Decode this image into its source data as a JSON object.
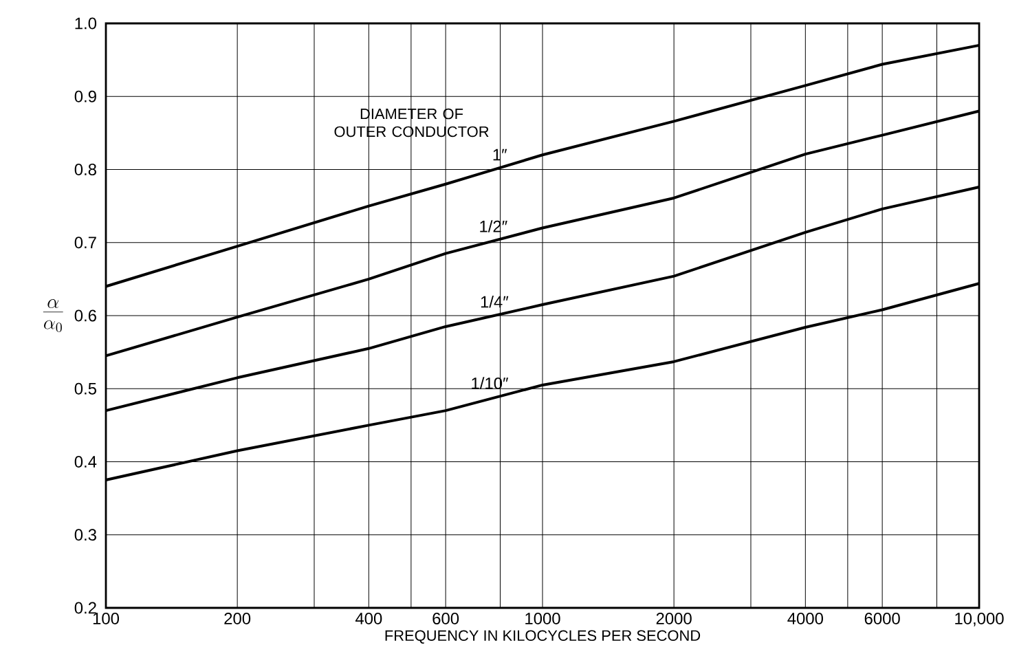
{
  "chart_data": {
    "type": "line",
    "xlabel": "FREQUENCY IN KILOCYCLES PER SECOND",
    "ylabel": "\\frac{\\alpha}{\\alpha_{0}}",
    "legend_title": "DIAMETER OF OUTER CONDUCTOR",
    "x": [
      100,
      200,
      400,
      600,
      1000,
      2000,
      4000,
      6000,
      10000
    ],
    "series": [
      {
        "name": "1″",
        "color": "#000000",
        "values": [
          0.64,
          0.695,
          0.75,
          0.78,
          0.82,
          0.866,
          0.915,
          0.944,
          0.97
        ]
      },
      {
        "name": "1/2″",
        "color": "#000000",
        "values": [
          0.545,
          0.598,
          0.65,
          0.685,
          0.72,
          0.761,
          0.821,
          0.847,
          0.88
        ]
      },
      {
        "name": "1/4″",
        "color": "#000000",
        "values": [
          0.47,
          0.515,
          0.555,
          0.585,
          0.615,
          0.654,
          0.714,
          0.746,
          0.776
        ]
      },
      {
        "name": "1/10″",
        "color": "#000000",
        "values": [
          0.375,
          0.415,
          0.45,
          0.47,
          0.505,
          0.537,
          0.584,
          0.608,
          0.644
        ]
      }
    ],
    "log": "x",
    "xlim": [
      100,
      10000
    ],
    "ylim": [
      0.2,
      1.0
    ],
    "xticks": [
      100,
      200,
      {
        "value": 300,
        "label": null
      },
      400,
      {
        "value": 500,
        "label": null
      },
      600,
      {
        "value": 800,
        "label": null
      },
      1000,
      2000,
      {
        "value": 3000,
        "label": null
      },
      4000,
      {
        "value": 5000,
        "label": null
      },
      6000,
      {
        "value": 8000,
        "label": null
      },
      {
        "value": 10000,
        "label": "10,000"
      }
    ],
    "yticks": [
      0.2,
      0.3,
      0.4,
      0.5,
      0.6,
      0.7,
      0.8,
      0.9,
      {
        "value": 1,
        "label": "1.0"
      }
    ],
    "grid": true,
    "marker": "none",
    "line_style": "solid"
  }
}
